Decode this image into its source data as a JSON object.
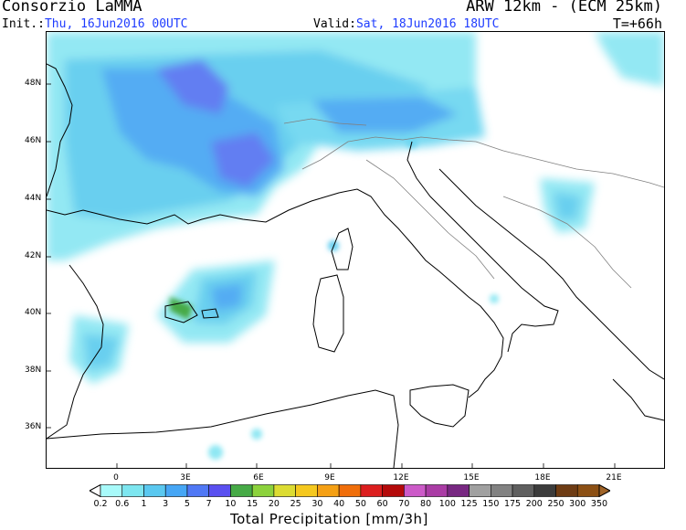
{
  "header": {
    "title_left": "Consorzio LaMMA",
    "title_right": "ARW 12km - (ECM 25km)",
    "init_label": "Init.:",
    "init_value": "Thu, 16Jun2016 00UTC",
    "valid_label": "Valid:",
    "valid_value": "Sat, 18Jun2016 18UTC",
    "step": "T=+66h"
  },
  "map": {
    "lat_labels": [
      "48N",
      "46N",
      "44N",
      "42N",
      "40N",
      "38N",
      "36N"
    ],
    "lon_labels": [
      "0",
      "3E",
      "6E",
      "9E",
      "12E",
      "15E",
      "18E",
      "21E"
    ],
    "land_color": "#ffffff",
    "sea_color": "#ffffff",
    "coast_color": "#000000",
    "border_color": "#808080"
  },
  "colorbar": {
    "title": "Total Precipitation [mm/3h]",
    "labels": [
      "0.2",
      "0.6",
      "1",
      "3",
      "5",
      "7",
      "10",
      "15",
      "20",
      "25",
      "30",
      "40",
      "50",
      "60",
      "70",
      "80",
      "100",
      "125",
      "150",
      "175",
      "200",
      "250",
      "300",
      "350"
    ],
    "colors": [
      "#a8fafa",
      "#7de6f0",
      "#5ac8f0",
      "#46a6f5",
      "#5078f5",
      "#5a50f0",
      "#46aa46",
      "#8cd23c",
      "#dcdc32",
      "#f5c81e",
      "#f5a014",
      "#f06e0a",
      "#dc1e1e",
      "#b40a0a",
      "#cc5ac8",
      "#aa3ca5",
      "#782882",
      "#a0a0a0",
      "#828282",
      "#5f5f5f",
      "#3c3c3c",
      "#6e3c14",
      "#8c5014",
      "#a06428"
    ]
  }
}
